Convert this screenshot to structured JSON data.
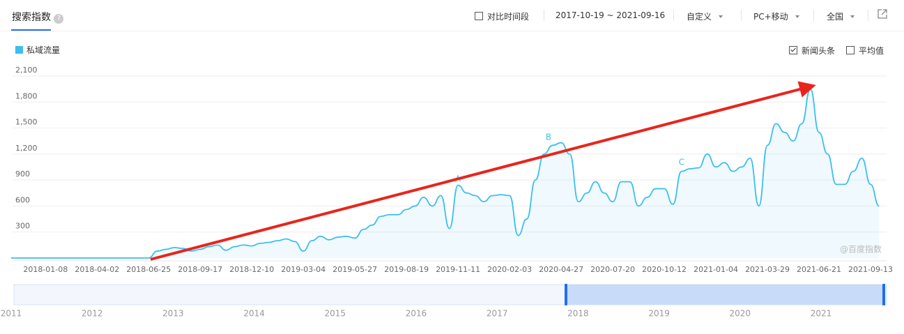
{
  "toolbar": {
    "tab": "搜索指数",
    "compare": "对比时间段",
    "date_range": "2017-10-19 ~ 2021-09-16",
    "custom": "自定义",
    "device": "PC+移动",
    "region": "全国"
  },
  "options": {
    "news": "新闻头条",
    "average": "平均值"
  },
  "watermark": "@百度指数",
  "overview": {
    "years": [
      "2011",
      "2012",
      "2013",
      "2014",
      "2015",
      "2016",
      "2017",
      "2018",
      "2019",
      "2020",
      "2021"
    ]
  },
  "chart_data": {
    "type": "line",
    "categories": [
      null,
      null,
      null,
      null,
      "2018-01-08",
      null,
      null,
      null,
      null,
      null,
      "2018-04-02",
      null,
      null,
      null,
      null,
      null,
      "2018-06-25",
      null,
      null,
      null,
      null,
      null,
      "2018-09-17",
      null,
      null,
      null,
      null,
      null,
      "2018-12-10",
      null,
      null,
      null,
      null,
      null,
      "2019-03-04",
      null,
      null,
      null,
      null,
      null,
      "2019-05-27",
      null,
      null,
      null,
      null,
      null,
      "2019-08-19",
      null,
      null,
      null,
      null,
      null,
      "2019-11-11",
      null,
      null,
      null,
      null,
      null,
      "2020-02-03",
      null,
      null,
      null,
      null,
      null,
      "2020-04-27",
      null,
      null,
      null,
      null,
      null,
      "2020-07-20",
      null,
      null,
      null,
      null,
      null,
      "2020-10-12",
      null,
      null,
      null,
      null,
      null,
      "2021-01-04",
      null,
      null,
      null,
      null,
      null,
      "2021-03-29",
      null,
      null,
      null,
      null,
      null,
      "2021-06-21",
      null,
      null,
      null,
      null,
      null,
      "2021-09-13",
      null
    ],
    "series": [
      {
        "name": "私域流量",
        "color": "#3cbfed",
        "values": [
          0,
          0,
          0,
          0,
          0,
          0,
          0,
          0,
          0,
          0,
          0,
          0,
          0,
          0,
          0,
          0,
          0,
          80,
          100,
          120,
          110,
          80,
          100,
          130,
          150,
          90,
          130,
          150,
          140,
          170,
          180,
          200,
          220,
          190,
          80,
          200,
          250,
          210,
          240,
          250,
          230,
          330,
          380,
          480,
          500,
          500,
          560,
          600,
          700,
          600,
          720,
          340,
          840,
          750,
          720,
          650,
          720,
          730,
          720,
          260,
          450,
          900,
          1200,
          1300,
          1330,
          1200,
          650,
          750,
          880,
          750,
          650,
          880,
          880,
          600,
          700,
          800,
          800,
          620,
          1000,
          1030,
          1040,
          1200,
          1050,
          1100,
          1000,
          1050,
          1150,
          600,
          1300,
          1550,
          1450,
          1350,
          1550,
          1950,
          1450,
          1200,
          850,
          850,
          1000,
          1150,
          850,
          600
        ]
      }
    ],
    "ylim": [
      0,
      2100
    ],
    "yticks": [
      300,
      600,
      900,
      {
        "value": 1200,
        "label": "1,200"
      },
      {
        "value": 1500,
        "label": "1,500"
      },
      {
        "value": 1800,
        "label": "1,800"
      },
      {
        "value": 2100,
        "label": "2,100"
      }
    ],
    "grid": true,
    "annotations": [
      "A",
      "B",
      "C"
    ]
  }
}
